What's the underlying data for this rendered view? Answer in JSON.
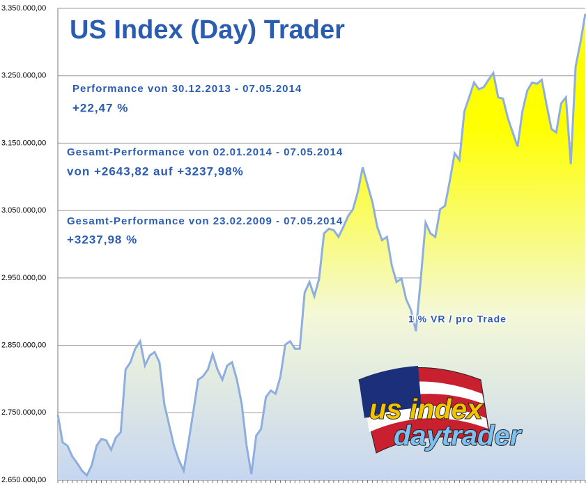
{
  "chart_data": {
    "type": "area",
    "title": "US Index (Day) Trader",
    "annotations": [
      "Performance  von  30.12.2013 - 07.05.2014",
      "+22,47  %",
      "Gesamt-Performance  von  02.01.2014 - 07.05.2014",
      "von +2643,82 auf  +3237,98%",
      "Gesamt-Performance  von  23.02.2009 - 07.05.2014",
      "+3237,98 %",
      "1 % VR / pro Trade"
    ],
    "logo": [
      "us index",
      "daytrader"
    ],
    "color": "#8eaee0",
    "fill_gradient": [
      "#ffff00",
      "#f4f8d8",
      "#c6d6f0"
    ],
    "grid": true,
    "ylim": [
      2650000,
      3350000
    ],
    "yticks": [
      {
        "value": 2650000,
        "label": "2.650.000,00"
      },
      {
        "value": 2750000,
        "label": "2.750.000,00"
      },
      {
        "value": 2850000,
        "label": "2.850.000,00"
      },
      {
        "value": 2950000,
        "label": "2.950.000,00"
      },
      {
        "value": 3050000,
        "label": "3.050.000,00"
      },
      {
        "value": 3150000,
        "label": "3.150.000,00"
      },
      {
        "value": 3250000,
        "label": "3.250.000,00"
      },
      {
        "value": 3350000,
        "label": "3.350.000,00"
      }
    ],
    "values": [
      2747000,
      2706000,
      2701000,
      2685000,
      2675000,
      2664000,
      2657000,
      2672000,
      2701000,
      2711000,
      2709000,
      2695000,
      2713000,
      2721000,
      2814000,
      2825000,
      2845000,
      2856000,
      2820000,
      2835000,
      2840000,
      2825000,
      2763000,
      2732000,
      2701000,
      2680000,
      2664000,
      2706000,
      2752000,
      2799000,
      2804000,
      2814000,
      2837000,
      2814000,
      2799000,
      2820000,
      2825000,
      2799000,
      2763000,
      2701000,
      2659000,
      2716000,
      2726000,
      2773000,
      2783000,
      2778000,
      2804000,
      2851000,
      2856000,
      2845000,
      2845000,
      2928000,
      2944000,
      2923000,
      2949000,
      3016000,
      3023000,
      3021000,
      3011000,
      3026000,
      3042000,
      3052000,
      3078000,
      3114000,
      3088000,
      3063000,
      3026000,
      3006000,
      3011000,
      2969000,
      2944000,
      2949000,
      2918000,
      2902000,
      2871000,
      2949000,
      3032000,
      3016000,
      3011000,
      3052000,
      3057000,
      3094000,
      3135000,
      3125000,
      3197000,
      3218000,
      3240000,
      3230000,
      3233000,
      3244000,
      3254000,
      3218000,
      3216000,
      3187000,
      3166000,
      3145000,
      3197000,
      3228000,
      3240000,
      3238000,
      3244000,
      3207000,
      3171000,
      3166000,
      3209000,
      3218000,
      3119000,
      3264000,
      3300000,
      3342000
    ]
  }
}
